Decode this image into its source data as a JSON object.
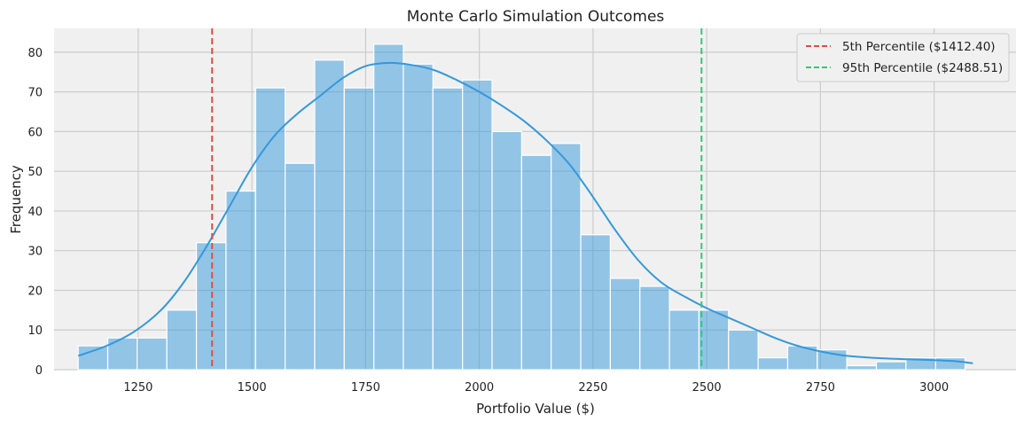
{
  "chart_data": {
    "type": "histogram",
    "title": "Monte Carlo Simulation Outcomes",
    "xlabel": "Portfolio Value ($)",
    "ylabel": "Frequency",
    "xlim": [
      1065,
      3180
    ],
    "ylim": [
      0,
      86
    ],
    "x_ticks": [
      1250,
      1500,
      1750,
      2000,
      2250,
      2500,
      2750,
      3000
    ],
    "y_ticks": [
      0,
      10,
      20,
      30,
      40,
      50,
      60,
      70,
      80
    ],
    "grid": true,
    "legend_position": "top-right",
    "bin_start": 1118,
    "bin_width": 65,
    "counts": [
      6,
      8,
      8,
      15,
      32,
      45,
      71,
      52,
      78,
      71,
      82,
      77,
      71,
      73,
      60,
      54,
      57,
      34,
      23,
      21,
      15,
      15,
      10,
      3,
      6,
      5,
      1,
      2,
      3,
      3
    ],
    "kde": {
      "x": [
        1118,
        1180,
        1240,
        1300,
        1350,
        1400,
        1450,
        1500,
        1550,
        1600,
        1650,
        1700,
        1750,
        1800,
        1850,
        1900,
        1950,
        2000,
        2050,
        2100,
        2150,
        2200,
        2250,
        2300,
        2350,
        2400,
        2450,
        2500,
        2550,
        2600,
        2650,
        2700,
        2750,
        2800,
        2850,
        2900,
        2950,
        3000,
        3050,
        3085
      ],
      "y": [
        3.5,
        6,
        9.5,
        15,
        22,
        31,
        41,
        51,
        59,
        64.5,
        69,
        73.5,
        76.5,
        77.3,
        76.8,
        75.5,
        73,
        70,
        66.5,
        62.5,
        57.5,
        51.5,
        43.5,
        35,
        27.5,
        22,
        18.5,
        15.5,
        13,
        10.5,
        8,
        6,
        4.6,
        3.6,
        3.1,
        2.8,
        2.6,
        2.4,
        2.1,
        1.6
      ]
    },
    "series": [
      {
        "name": "5th Percentile ($1412.40)",
        "type": "vline",
        "value": 1412.4,
        "color": "#e74c3c"
      },
      {
        "name": "95th Percentile ($2488.51)",
        "type": "vline",
        "value": 2488.51,
        "color": "#2ecc71"
      }
    ],
    "colors": {
      "bar_fill": "#3498db",
      "bar_opacity": 0.5,
      "kde_line": "#3498db",
      "plot_background": "#f0f0f0",
      "grid": "#cccccc"
    }
  }
}
